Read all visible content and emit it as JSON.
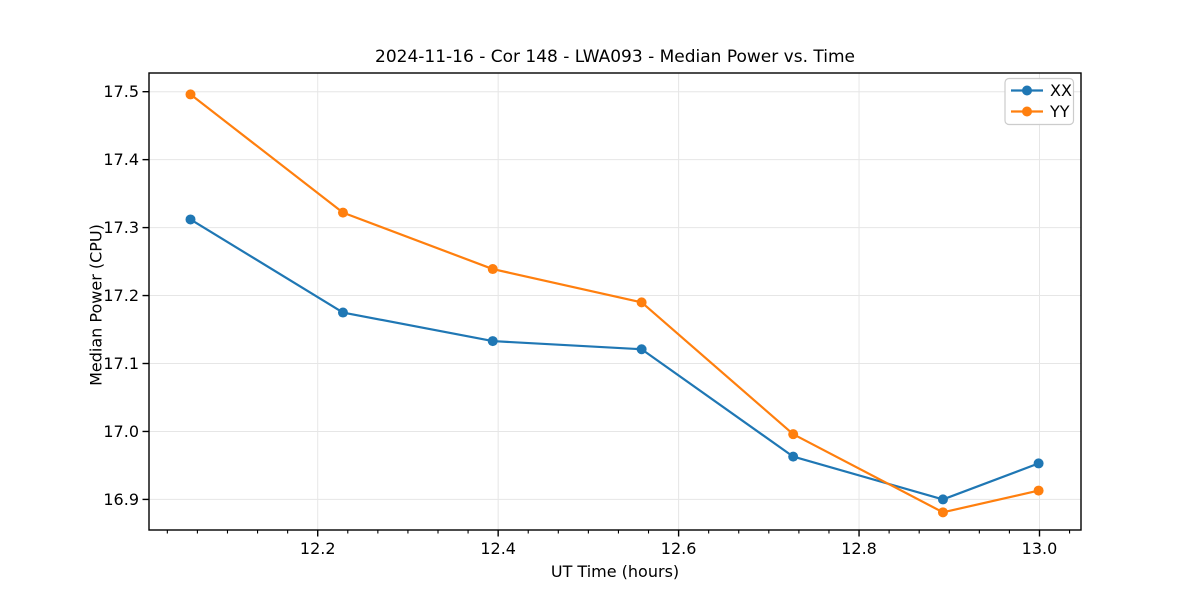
{
  "chart_data": {
    "type": "line",
    "title": "2024-11-16 - Cor 148 - LWA093 - Median Power vs. Time",
    "xlabel": "UT Time (hours)",
    "ylabel": "Median Power (CPU)",
    "x": [
      12.059,
      12.228,
      12.394,
      12.559,
      12.727,
      12.893,
      12.999
    ],
    "series": [
      {
        "name": "XX",
        "color": "#1f77b4",
        "values": [
          17.312,
          17.175,
          17.133,
          17.121,
          16.963,
          16.9,
          16.953
        ]
      },
      {
        "name": "YY",
        "color": "#ff7f0e",
        "values": [
          17.496,
          17.322,
          17.239,
          17.19,
          16.996,
          16.881,
          16.913
        ]
      }
    ],
    "xlim": [
      12.013,
      13.046
    ],
    "ylim": [
      16.855,
      17.5275
    ],
    "x_major_ticks": [
      12.2,
      12.4,
      12.6,
      12.8,
      13.0
    ],
    "x_tick_labels": [
      "12.2",
      "12.4",
      "12.6",
      "12.8",
      "13.0"
    ],
    "x_minor_step": 0.0333333,
    "y_major_ticks": [
      16.9,
      17.0,
      17.1,
      17.2,
      17.3,
      17.4,
      17.5
    ],
    "y_tick_labels": [
      "16.9",
      "17.0",
      "17.1",
      "17.2",
      "17.3",
      "17.4",
      "17.5"
    ],
    "grid": true,
    "legend": {
      "position": "upper right",
      "entries": [
        "XX",
        "YY"
      ]
    },
    "colors": {
      "grid": "#e6e6e6",
      "spine": "#000000",
      "tick": "#000000",
      "text": "#000000",
      "background": "#ffffff",
      "legend_border": "#cccccc",
      "legend_background": "#ffffff"
    }
  }
}
